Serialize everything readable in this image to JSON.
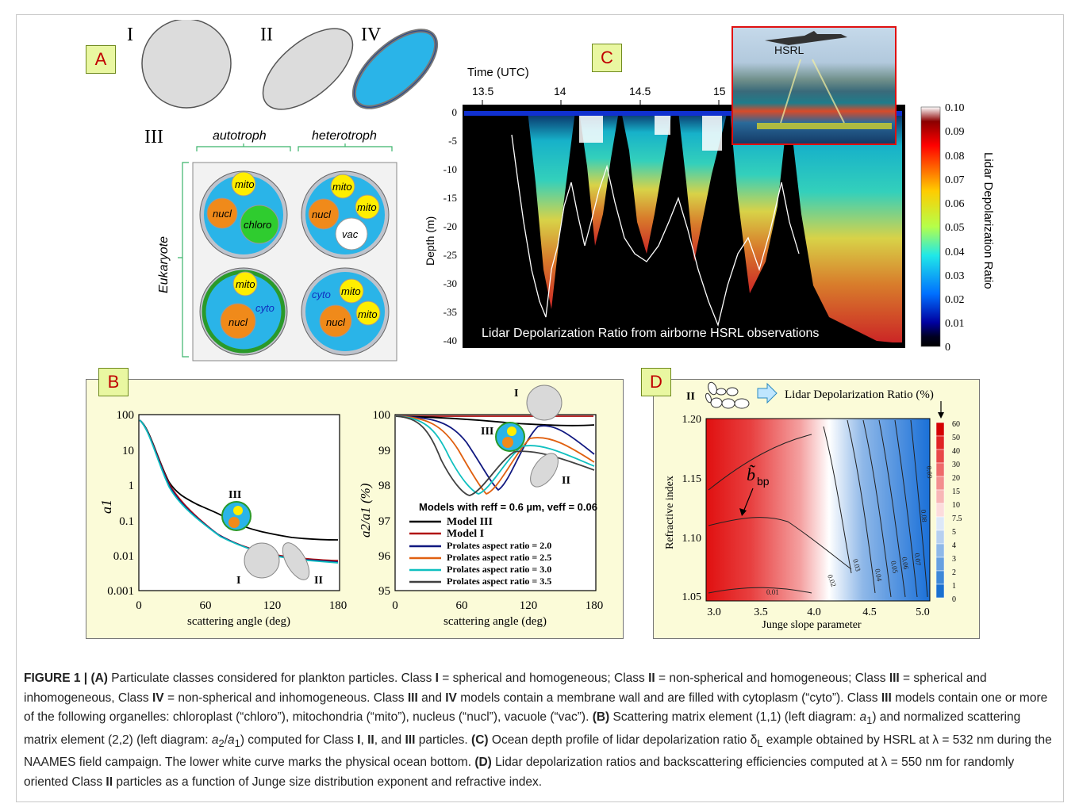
{
  "panels": {
    "A": {
      "label": "A",
      "class_labels": {
        "I": "I",
        "II": "II",
        "III": "III",
        "IV": "IV"
      },
      "column_headers": [
        "autotroph",
        "heterotroph"
      ],
      "row_label": "Eukaryote",
      "cells": [
        {
          "organelles": [
            "mito",
            "nucl",
            "chloro"
          ]
        },
        {
          "organelles": [
            "mito",
            "mito",
            "nucl",
            "vac"
          ]
        },
        {
          "organelles": [
            "mito",
            "cyto",
            "nucl"
          ]
        },
        {
          "organelles": [
            "cyto",
            "mito",
            "mito",
            "nucl"
          ]
        }
      ]
    },
    "B": {
      "label": "B",
      "left": {
        "ylabel": "a1",
        "xlabel": "scattering angle (deg)",
        "yticks": [
          "100",
          "10",
          "1",
          "0.1",
          "0.01",
          "0.001"
        ],
        "xticks": [
          "0",
          "60",
          "120",
          "180"
        ],
        "class_tags": [
          "III",
          "I",
          "II"
        ]
      },
      "right": {
        "ylabel": "a2/a1 (%)",
        "xlabel": "scattering angle (deg)",
        "yticks": [
          "100",
          "99",
          "98",
          "97",
          "96",
          "95"
        ],
        "xticks": [
          "0",
          "60",
          "120",
          "180"
        ],
        "class_tags": [
          "I",
          "III",
          "II"
        ],
        "legend_title": "Models with reff = 0.6 µm, veff = 0.06",
        "legend": [
          {
            "label": "Model III",
            "color": "#000000"
          },
          {
            "label": "Model I",
            "color": "#b01010"
          },
          {
            "label": "Prolates aspect ratio = 2.0",
            "color": "#101880"
          },
          {
            "label": "Prolates aspect ratio = 2.5",
            "color": "#e06010"
          },
          {
            "label": "Prolates aspect ratio = 3.0",
            "color": "#10c0c0"
          },
          {
            "label": "Prolates aspect ratio = 3.5",
            "color": "#404040"
          }
        ]
      }
    },
    "C": {
      "label": "C",
      "time_label": "Time (UTC)",
      "time_ticks": [
        "13.5",
        "14",
        "14.5",
        "15"
      ],
      "ylabel": "Depth (m)",
      "yticks": [
        "0",
        "-5",
        "-10",
        "-15",
        "-20",
        "-25",
        "-30",
        "-35",
        "-40"
      ],
      "inset_label": "HSRL",
      "overlay_text": "Lidar Depolarization Ratio from airborne HSRL observations",
      "colorbar_title": "Lidar Depolarization Ratio",
      "colorbar_ticks": [
        "0.10",
        "0.09",
        "0.08",
        "0.07",
        "0.06",
        "0.05",
        "0.04",
        "0.03",
        "0.02",
        "0.01",
        "0"
      ]
    },
    "D": {
      "label": "D",
      "class_tag": "II",
      "arrow_text": "Lidar Depolarization Ratio (%)",
      "ylabel": "Refractive index",
      "xlabel": "Junge slope parameter",
      "yticks": [
        "1.20",
        "1.15",
        "1.10",
        "1.05"
      ],
      "xticks": [
        "3.0",
        "3.5",
        "4.0",
        "4.5",
        "5.0"
      ],
      "bbp_label": "b̃",
      "bbp_sub": "bp",
      "contour_labels": [
        "0.01",
        "0.02",
        "0.03",
        "0.04",
        "0.05",
        "0.06",
        "0.07",
        "0.08",
        "0.09"
      ],
      "colorbar_ticks": [
        "60",
        "50",
        "40",
        "30",
        "20",
        "15",
        "10",
        "7.5",
        "5",
        "4",
        "3",
        "2",
        "1",
        "0"
      ]
    }
  },
  "caption": {
    "fig": "FIGURE 1 |",
    "a": "(A)",
    "a_text": " Particulate classes considered for plankton particles. Class ",
    "I": "I",
    "t1": " = spherical and homogeneous; Class ",
    "II": "II",
    "t2": " = non-spherical and homogeneous; Class ",
    "III": "III",
    "t3": " = spherical and inhomogeneous, Class ",
    "IV": "IV",
    "t4": " = non-spherical and inhomogeneous. Class ",
    "t5": " and ",
    "t6": " models contain a membrane wall and are filled with cytoplasm (“cyto”). Class ",
    "t7": " models contain one or more of the following organelles: chloroplast (“chloro”), mitochondria (“mito”), nucleus (“nucl”), vacuole (“vac”). ",
    "b": "(B)",
    "t8": " Scattering matrix element (1,1) (left diagram: ",
    "a1": "a",
    "a1s": "1",
    "t9": ") and normalized scattering matrix element (2,2) (left diagram: ",
    "a2": "a",
    "a2s": "2",
    "slash": "/",
    "t10": ") computed for Class ",
    "comma": ", ",
    "and": ", and ",
    "t11": " particles. ",
    "c": "(C)",
    "t12": " Ocean depth profile of lidar depolarization ratio δ",
    "L": "L",
    "t13": " example obtained by HSRL at λ = 532 nm during the NAAMES field campaign. The lower white curve marks the physical ocean bottom. ",
    "d": "(D)",
    "t14": " Lidar depolarization ratios and backscattering efficiencies computed at λ = 550 nm for randomly oriented Class ",
    "t15": " particles as a function of Junge size distribution exponent and refractive index."
  }
}
